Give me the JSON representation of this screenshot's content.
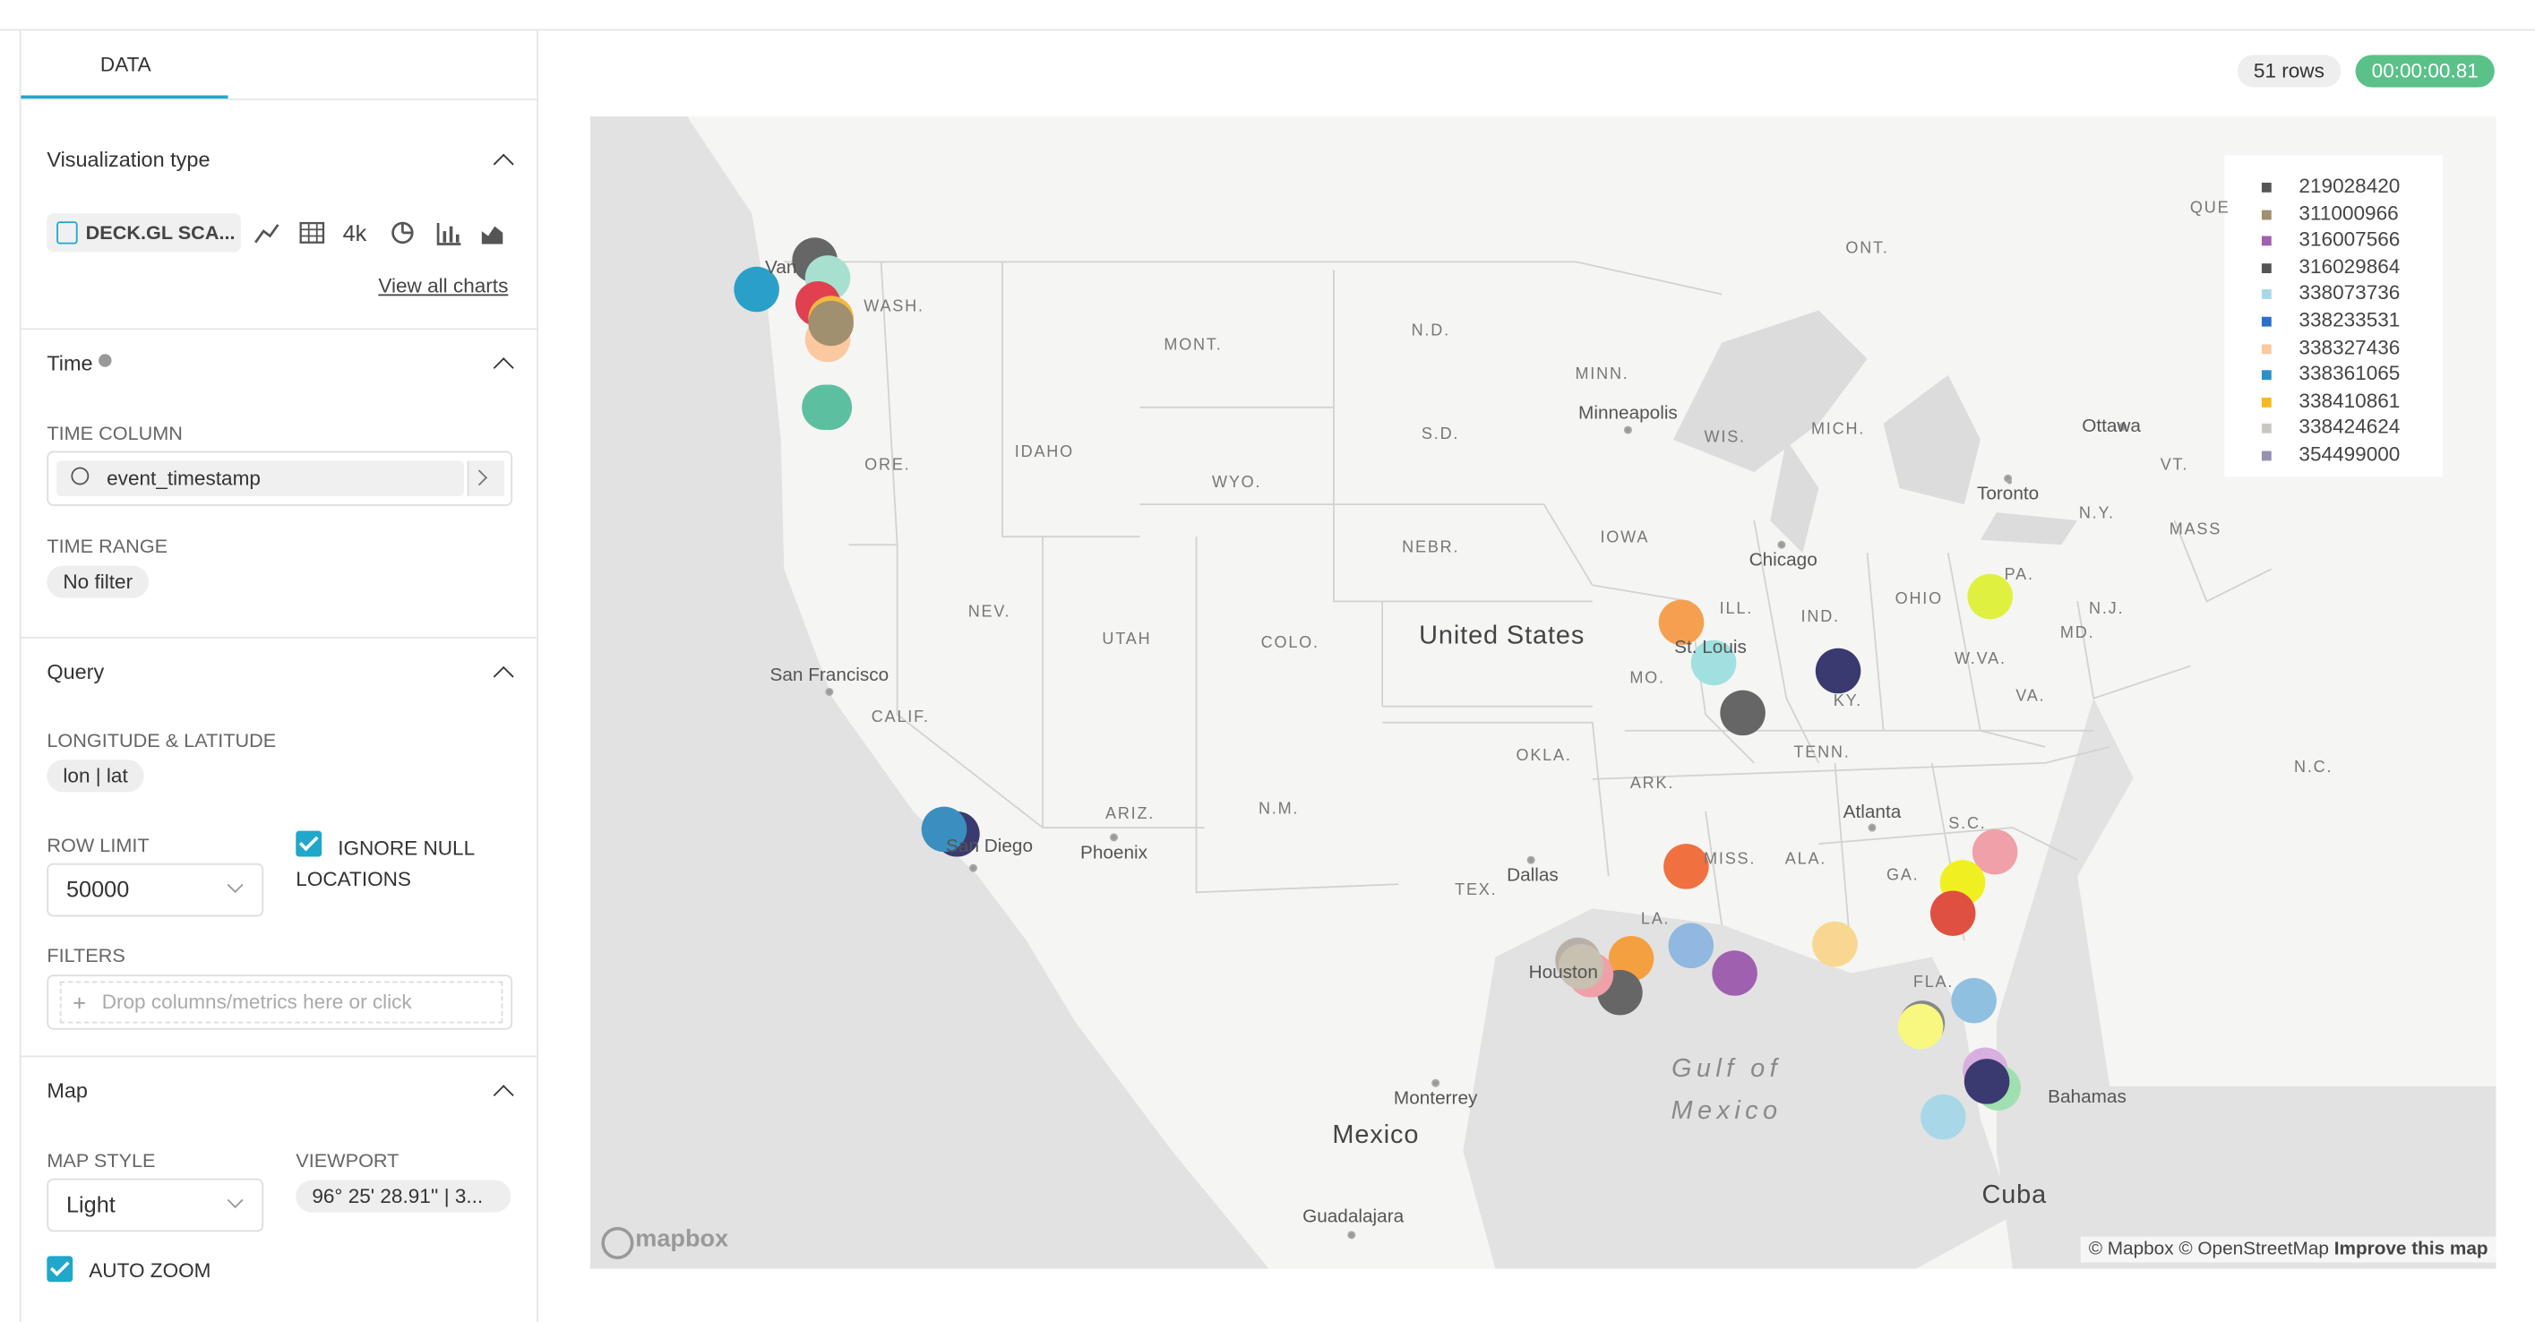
{
  "tabs": {
    "data": "DATA"
  },
  "status": {
    "rows": "51 rows",
    "timer": "00:00:00.81"
  },
  "visualization": {
    "title": "Visualization type",
    "chart": "DECK.GL SCA...",
    "big_number": "4k",
    "view_all": "View all charts"
  },
  "time": {
    "title": "Time",
    "column_label": "TIME COLUMN",
    "column": "event_timestamp",
    "range_label": "TIME RANGE",
    "range": "No filter"
  },
  "query": {
    "title": "Query",
    "lonlat_label": "LONGITUDE & LATITUDE",
    "lonlat": "lon | lat",
    "row_limit_label": "ROW LIMIT",
    "row_limit": "50000",
    "ignore_null": "IGNORE NULL LOCATIONS",
    "filters_label": "FILTERS",
    "filters_placeholder": "Drop columns/metrics here or click"
  },
  "map": {
    "title": "Map",
    "style_label": "MAP STYLE",
    "style": "Light",
    "viewport_label": "VIEWPORT",
    "viewport": "96° 25' 28.91'' | 3...",
    "auto_zoom": "AUTO ZOOM"
  },
  "legend": [
    {
      "name": "219028420",
      "color": "#555555"
    },
    {
      "name": "311000966",
      "color": "#a09070"
    },
    {
      "name": "316007566",
      "color": "#a060b0"
    },
    {
      "name": "316029864",
      "color": "#555555"
    },
    {
      "name": "338073736",
      "color": "#a8d8e8"
    },
    {
      "name": "338233531",
      "color": "#2a6fc8"
    },
    {
      "name": "338327436",
      "color": "#fbc8a0"
    },
    {
      "name": "338361065",
      "color": "#2a90c8"
    },
    {
      "name": "338410861",
      "color": "#f5b820"
    },
    {
      "name": "338424624",
      "color": "#c8c8c0"
    },
    {
      "name": "354499000",
      "color": "#9890b0"
    }
  ],
  "map_labels": [
    "ONT.",
    "QUE",
    "N.D.",
    "MONT.",
    "WASH.",
    "MINN.",
    "Minneapolis",
    "WIS.",
    "MICH.",
    "Ottawa",
    "Toronto",
    "N.Y.",
    "VT.",
    "MASS",
    "IDAHO",
    "ORE.",
    "WYO.",
    "S.D.",
    "NEBR.",
    "IOWA",
    "Chicago",
    "PA.",
    "N.J.",
    "OHIO",
    "IND.",
    "ILL.",
    "NEV.",
    "UTAH",
    "COLO.",
    "United States",
    "MO.",
    "St. Louis",
    "KY.",
    "W.VA.",
    "VA.",
    "MD.",
    "San Francisco",
    "CALIF.",
    "OKLA.",
    "ARK.",
    "TENN.",
    "N.C.",
    "ARIZ.",
    "N.M.",
    "Phoenix",
    "San Diego",
    "Atlanta",
    "S.C.",
    "GA.",
    "ALA.",
    "MISS.",
    "TEX.",
    "Dallas",
    "LA.",
    "FLA.",
    "Houston",
    "Gulf of",
    "Mexico",
    "Monterrey",
    "Mexico",
    "Bahamas",
    "Cuba",
    "Guadalajara",
    "Van"
  ],
  "attribution": {
    "logo": "mapbox",
    "copyright": "© Mapbox © OpenStreetMap",
    "improve": "Improve this map"
  }
}
